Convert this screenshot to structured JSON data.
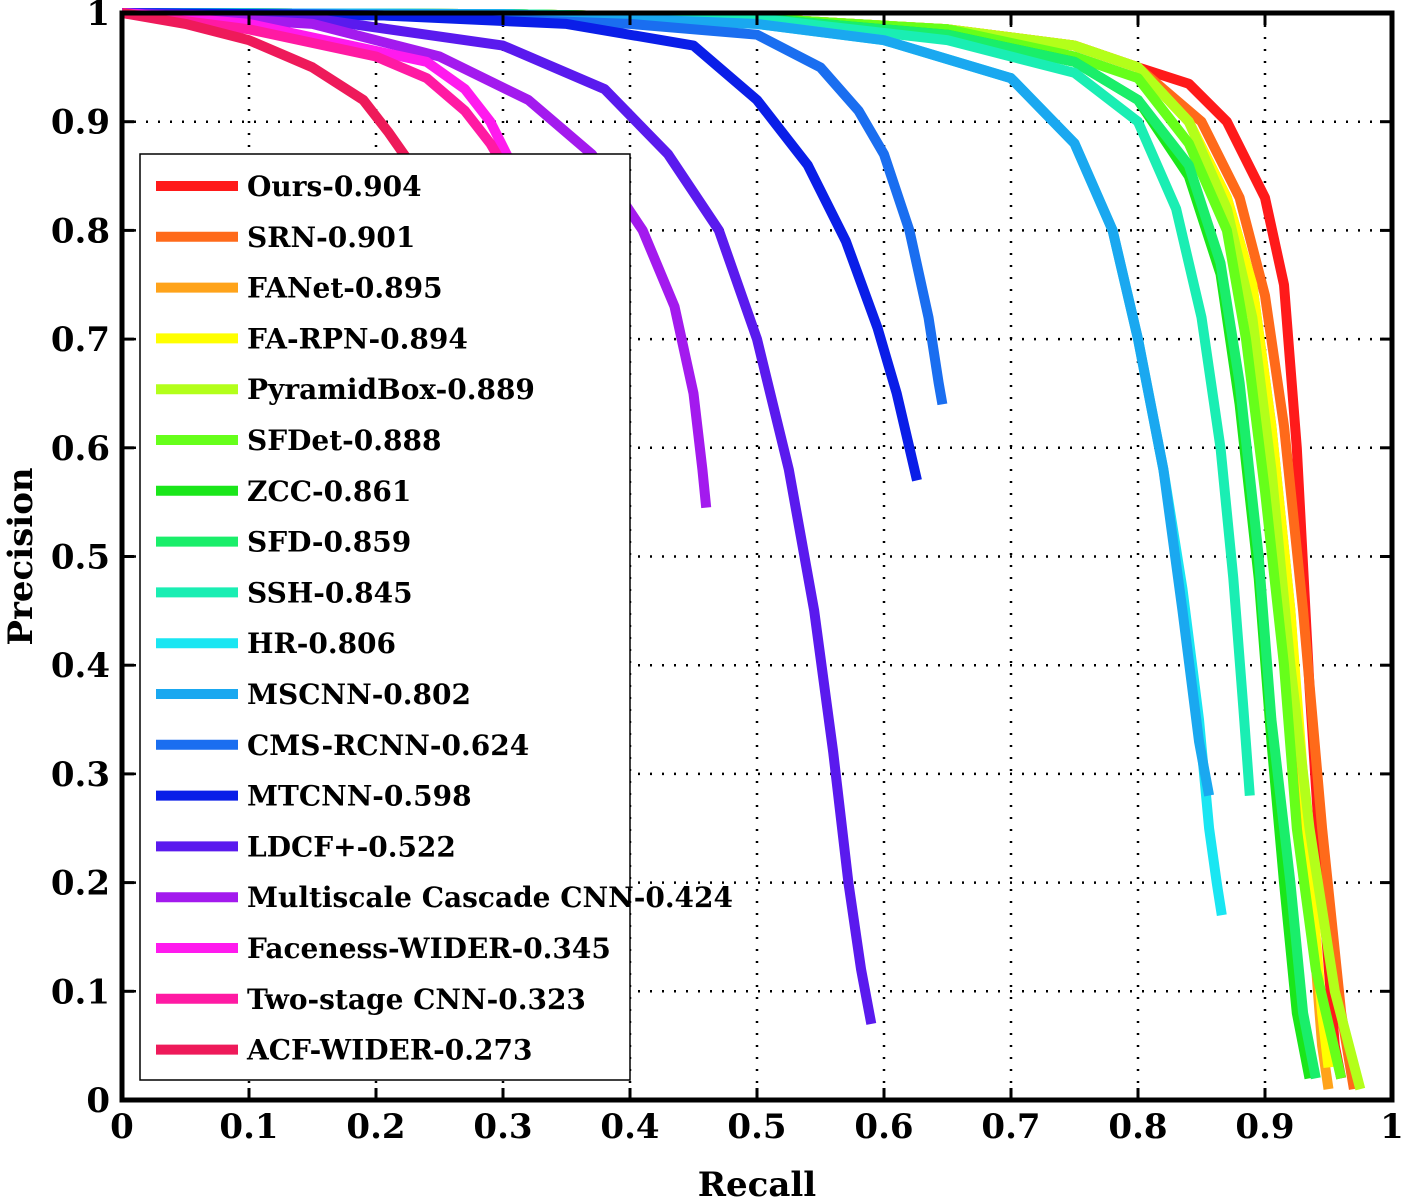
{
  "chart_data": {
    "type": "line",
    "title": "",
    "xlabel": "Recall",
    "ylabel": "Precision",
    "xlim": [
      0,
      1
    ],
    "ylim": [
      0,
      1
    ],
    "x_ticks": [
      "0",
      "0.1",
      "0.2",
      "0.3",
      "0.4",
      "0.5",
      "0.6",
      "0.7",
      "0.8",
      "0.9",
      "1"
    ],
    "y_ticks": [
      "0",
      "0.1",
      "0.2",
      "0.3",
      "0.4",
      "0.5",
      "0.6",
      "0.7",
      "0.8",
      "0.9",
      "1"
    ],
    "grid": true,
    "legend_position": "left",
    "series": [
      {
        "name": "Ours-0.904",
        "color": "#ff1a1a",
        "points": [
          [
            0,
            1
          ],
          [
            0.3,
            0.999
          ],
          [
            0.5,
            0.995
          ],
          [
            0.65,
            0.985
          ],
          [
            0.75,
            0.97
          ],
          [
            0.8,
            0.95
          ],
          [
            0.84,
            0.935
          ],
          [
            0.87,
            0.9
          ],
          [
            0.9,
            0.83
          ],
          [
            0.915,
            0.75
          ],
          [
            0.925,
            0.6
          ],
          [
            0.935,
            0.38
          ],
          [
            0.945,
            0.2
          ],
          [
            0.955,
            0.05
          ],
          [
            0.96,
            0.02
          ]
        ]
      },
      {
        "name": "SRN-0.901",
        "color": "#ff6a1a",
        "points": [
          [
            0,
            1
          ],
          [
            0.3,
            0.999
          ],
          [
            0.5,
            0.995
          ],
          [
            0.65,
            0.985
          ],
          [
            0.75,
            0.97
          ],
          [
            0.8,
            0.95
          ],
          [
            0.85,
            0.9
          ],
          [
            0.88,
            0.83
          ],
          [
            0.9,
            0.74
          ],
          [
            0.915,
            0.62
          ],
          [
            0.93,
            0.45
          ],
          [
            0.945,
            0.25
          ],
          [
            0.96,
            0.08
          ],
          [
            0.97,
            0.01
          ]
        ]
      },
      {
        "name": "FANet-0.895",
        "color": "#ffa31a",
        "points": [
          [
            0,
            1
          ],
          [
            0.3,
            0.999
          ],
          [
            0.5,
            0.995
          ],
          [
            0.65,
            0.985
          ],
          [
            0.75,
            0.97
          ],
          [
            0.8,
            0.95
          ],
          [
            0.84,
            0.9
          ],
          [
            0.87,
            0.83
          ],
          [
            0.89,
            0.75
          ],
          [
            0.905,
            0.62
          ],
          [
            0.92,
            0.45
          ],
          [
            0.935,
            0.2
          ],
          [
            0.945,
            0.05
          ],
          [
            0.95,
            0.01
          ]
        ]
      },
      {
        "name": "FA-RPN-0.894",
        "color": "#ffff00",
        "points": [
          [
            0,
            1
          ],
          [
            0.3,
            0.999
          ],
          [
            0.5,
            0.995
          ],
          [
            0.65,
            0.985
          ],
          [
            0.75,
            0.97
          ],
          [
            0.8,
            0.95
          ],
          [
            0.84,
            0.9
          ],
          [
            0.87,
            0.83
          ],
          [
            0.89,
            0.75
          ],
          [
            0.905,
            0.62
          ],
          [
            0.92,
            0.45
          ],
          [
            0.935,
            0.22
          ],
          [
            0.945,
            0.08
          ],
          [
            0.95,
            0.03
          ]
        ]
      },
      {
        "name": "PyramidBox-0.889",
        "color": "#b3ff1a",
        "points": [
          [
            0,
            1
          ],
          [
            0.3,
            0.999
          ],
          [
            0.5,
            0.995
          ],
          [
            0.65,
            0.985
          ],
          [
            0.75,
            0.97
          ],
          [
            0.8,
            0.95
          ],
          [
            0.84,
            0.9
          ],
          [
            0.87,
            0.82
          ],
          [
            0.89,
            0.72
          ],
          [
            0.905,
            0.58
          ],
          [
            0.92,
            0.4
          ],
          [
            0.935,
            0.25
          ],
          [
            0.955,
            0.1
          ],
          [
            0.975,
            0.01
          ]
        ]
      },
      {
        "name": "SFDet-0.888",
        "color": "#66ff1a",
        "points": [
          [
            0,
            1
          ],
          [
            0.3,
            0.999
          ],
          [
            0.5,
            0.995
          ],
          [
            0.65,
            0.985
          ],
          [
            0.75,
            0.96
          ],
          [
            0.8,
            0.94
          ],
          [
            0.84,
            0.88
          ],
          [
            0.87,
            0.8
          ],
          [
            0.885,
            0.7
          ],
          [
            0.9,
            0.56
          ],
          [
            0.915,
            0.4
          ],
          [
            0.925,
            0.25
          ],
          [
            0.94,
            0.12
          ],
          [
            0.96,
            0.02
          ]
        ]
      },
      {
        "name": "ZCC-0.861",
        "color": "#1ae61a",
        "points": [
          [
            0,
            1
          ],
          [
            0.3,
            0.999
          ],
          [
            0.5,
            0.995
          ],
          [
            0.65,
            0.98
          ],
          [
            0.75,
            0.955
          ],
          [
            0.8,
            0.92
          ],
          [
            0.84,
            0.85
          ],
          [
            0.865,
            0.76
          ],
          [
            0.88,
            0.64
          ],
          [
            0.895,
            0.48
          ],
          [
            0.905,
            0.33
          ],
          [
            0.915,
            0.2
          ],
          [
            0.925,
            0.08
          ],
          [
            0.935,
            0.02
          ]
        ]
      },
      {
        "name": "SFD-0.859",
        "color": "#1aee6a",
        "points": [
          [
            0,
            1
          ],
          [
            0.3,
            0.999
          ],
          [
            0.5,
            0.995
          ],
          [
            0.65,
            0.98
          ],
          [
            0.75,
            0.955
          ],
          [
            0.8,
            0.92
          ],
          [
            0.84,
            0.86
          ],
          [
            0.865,
            0.77
          ],
          [
            0.88,
            0.66
          ],
          [
            0.895,
            0.5
          ],
          [
            0.905,
            0.35
          ],
          [
            0.92,
            0.2
          ],
          [
            0.93,
            0.08
          ],
          [
            0.94,
            0.02
          ]
        ]
      },
      {
        "name": "SSH-0.845",
        "color": "#1aeeb3",
        "points": [
          [
            0,
            1
          ],
          [
            0.3,
            0.999
          ],
          [
            0.5,
            0.995
          ],
          [
            0.65,
            0.975
          ],
          [
            0.75,
            0.945
          ],
          [
            0.8,
            0.9
          ],
          [
            0.83,
            0.82
          ],
          [
            0.85,
            0.72
          ],
          [
            0.865,
            0.6
          ],
          [
            0.875,
            0.48
          ],
          [
            0.883,
            0.36
          ],
          [
            0.888,
            0.28
          ]
        ]
      },
      {
        "name": "HR-0.806",
        "color": "#1ae6f2",
        "points": [
          [
            0,
            1
          ],
          [
            0.3,
            0.999
          ],
          [
            0.5,
            0.99
          ],
          [
            0.6,
            0.975
          ],
          [
            0.7,
            0.94
          ],
          [
            0.75,
            0.88
          ],
          [
            0.78,
            0.8
          ],
          [
            0.8,
            0.7
          ],
          [
            0.82,
            0.58
          ],
          [
            0.835,
            0.47
          ],
          [
            0.848,
            0.35
          ],
          [
            0.856,
            0.25
          ],
          [
            0.862,
            0.2
          ],
          [
            0.866,
            0.17
          ]
        ]
      },
      {
        "name": "MSCNN-0.802",
        "color": "#1aa8f0",
        "points": [
          [
            0,
            1
          ],
          [
            0.3,
            0.999
          ],
          [
            0.5,
            0.99
          ],
          [
            0.6,
            0.975
          ],
          [
            0.7,
            0.94
          ],
          [
            0.75,
            0.88
          ],
          [
            0.78,
            0.8
          ],
          [
            0.8,
            0.7
          ],
          [
            0.82,
            0.58
          ],
          [
            0.835,
            0.45
          ],
          [
            0.848,
            0.33
          ],
          [
            0.856,
            0.28
          ]
        ]
      },
      {
        "name": "CMS-RCNN-0.624",
        "color": "#1a6ef0",
        "points": [
          [
            0,
            1
          ],
          [
            0.2,
            0.998
          ],
          [
            0.4,
            0.99
          ],
          [
            0.5,
            0.98
          ],
          [
            0.55,
            0.95
          ],
          [
            0.58,
            0.91
          ],
          [
            0.6,
            0.87
          ],
          [
            0.62,
            0.8
          ],
          [
            0.635,
            0.72
          ],
          [
            0.643,
            0.66
          ],
          [
            0.646,
            0.64
          ]
        ]
      },
      {
        "name": "MTCNN-0.598",
        "color": "#0a1ee8",
        "points": [
          [
            0,
            1
          ],
          [
            0.2,
            0.998
          ],
          [
            0.35,
            0.99
          ],
          [
            0.45,
            0.97
          ],
          [
            0.5,
            0.92
          ],
          [
            0.54,
            0.86
          ],
          [
            0.57,
            0.79
          ],
          [
            0.595,
            0.71
          ],
          [
            0.61,
            0.65
          ],
          [
            0.62,
            0.6
          ],
          [
            0.626,
            0.57
          ]
        ]
      },
      {
        "name": "LDCF+-0.522",
        "color": "#5a1aee",
        "points": [
          [
            0,
            1
          ],
          [
            0.15,
            0.995
          ],
          [
            0.3,
            0.97
          ],
          [
            0.38,
            0.93
          ],
          [
            0.43,
            0.87
          ],
          [
            0.47,
            0.8
          ],
          [
            0.5,
            0.7
          ],
          [
            0.525,
            0.58
          ],
          [
            0.545,
            0.45
          ],
          [
            0.56,
            0.32
          ],
          [
            0.572,
            0.2
          ],
          [
            0.582,
            0.12
          ],
          [
            0.59,
            0.07
          ]
        ]
      },
      {
        "name": "Multiscale Cascade CNN-0.424",
        "color": "#a31aee",
        "points": [
          [
            0,
            1
          ],
          [
            0.15,
            0.99
          ],
          [
            0.25,
            0.96
          ],
          [
            0.32,
            0.92
          ],
          [
            0.37,
            0.87
          ],
          [
            0.41,
            0.8
          ],
          [
            0.435,
            0.73
          ],
          [
            0.45,
            0.65
          ],
          [
            0.457,
            0.58
          ],
          [
            0.46,
            0.545
          ]
        ]
      },
      {
        "name": "Faceness-WIDER-0.345",
        "color": "#ff1aee",
        "points": [
          [
            0,
            1
          ],
          [
            0.1,
            0.99
          ],
          [
            0.2,
            0.965
          ],
          [
            0.24,
            0.955
          ],
          [
            0.27,
            0.93
          ],
          [
            0.29,
            0.9
          ],
          [
            0.305,
            0.865
          ]
        ]
      },
      {
        "name": "Two-stage CNN-0.323",
        "color": "#ff1aa3",
        "points": [
          [
            0,
            1
          ],
          [
            0.1,
            0.985
          ],
          [
            0.2,
            0.96
          ],
          [
            0.24,
            0.94
          ],
          [
            0.27,
            0.91
          ],
          [
            0.29,
            0.88
          ],
          [
            0.3,
            0.86
          ]
        ]
      },
      {
        "name": "ACF-WIDER-0.273",
        "color": "#ee1a5a",
        "points": [
          [
            0,
            1
          ],
          [
            0.05,
            0.99
          ],
          [
            0.1,
            0.975
          ],
          [
            0.15,
            0.95
          ],
          [
            0.19,
            0.92
          ],
          [
            0.21,
            0.89
          ],
          [
            0.228,
            0.86
          ]
        ]
      }
    ]
  }
}
